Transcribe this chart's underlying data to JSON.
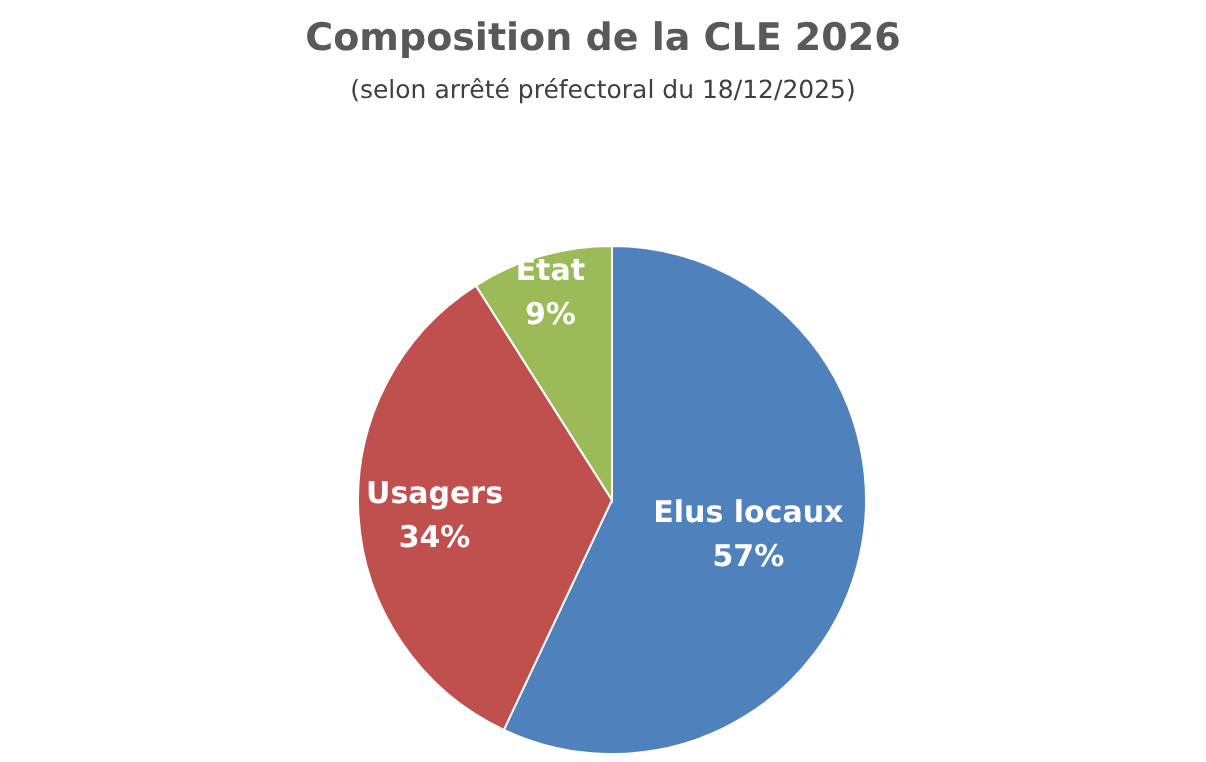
{
  "chart_data": {
    "type": "pie",
    "title": "Composition de la CLE 2026",
    "subtitle": "(selon arrêté préfectoral du 18/12/2025)",
    "categories": [
      "Elus locaux",
      "Usagers",
      "Etat"
    ],
    "values": [
      57,
      34,
      9
    ],
    "colors": [
      "#4f81bd",
      "#c0504d",
      "#9bbb59"
    ],
    "value_labels": [
      "57%",
      "34%",
      "9%"
    ],
    "legend": false
  }
}
